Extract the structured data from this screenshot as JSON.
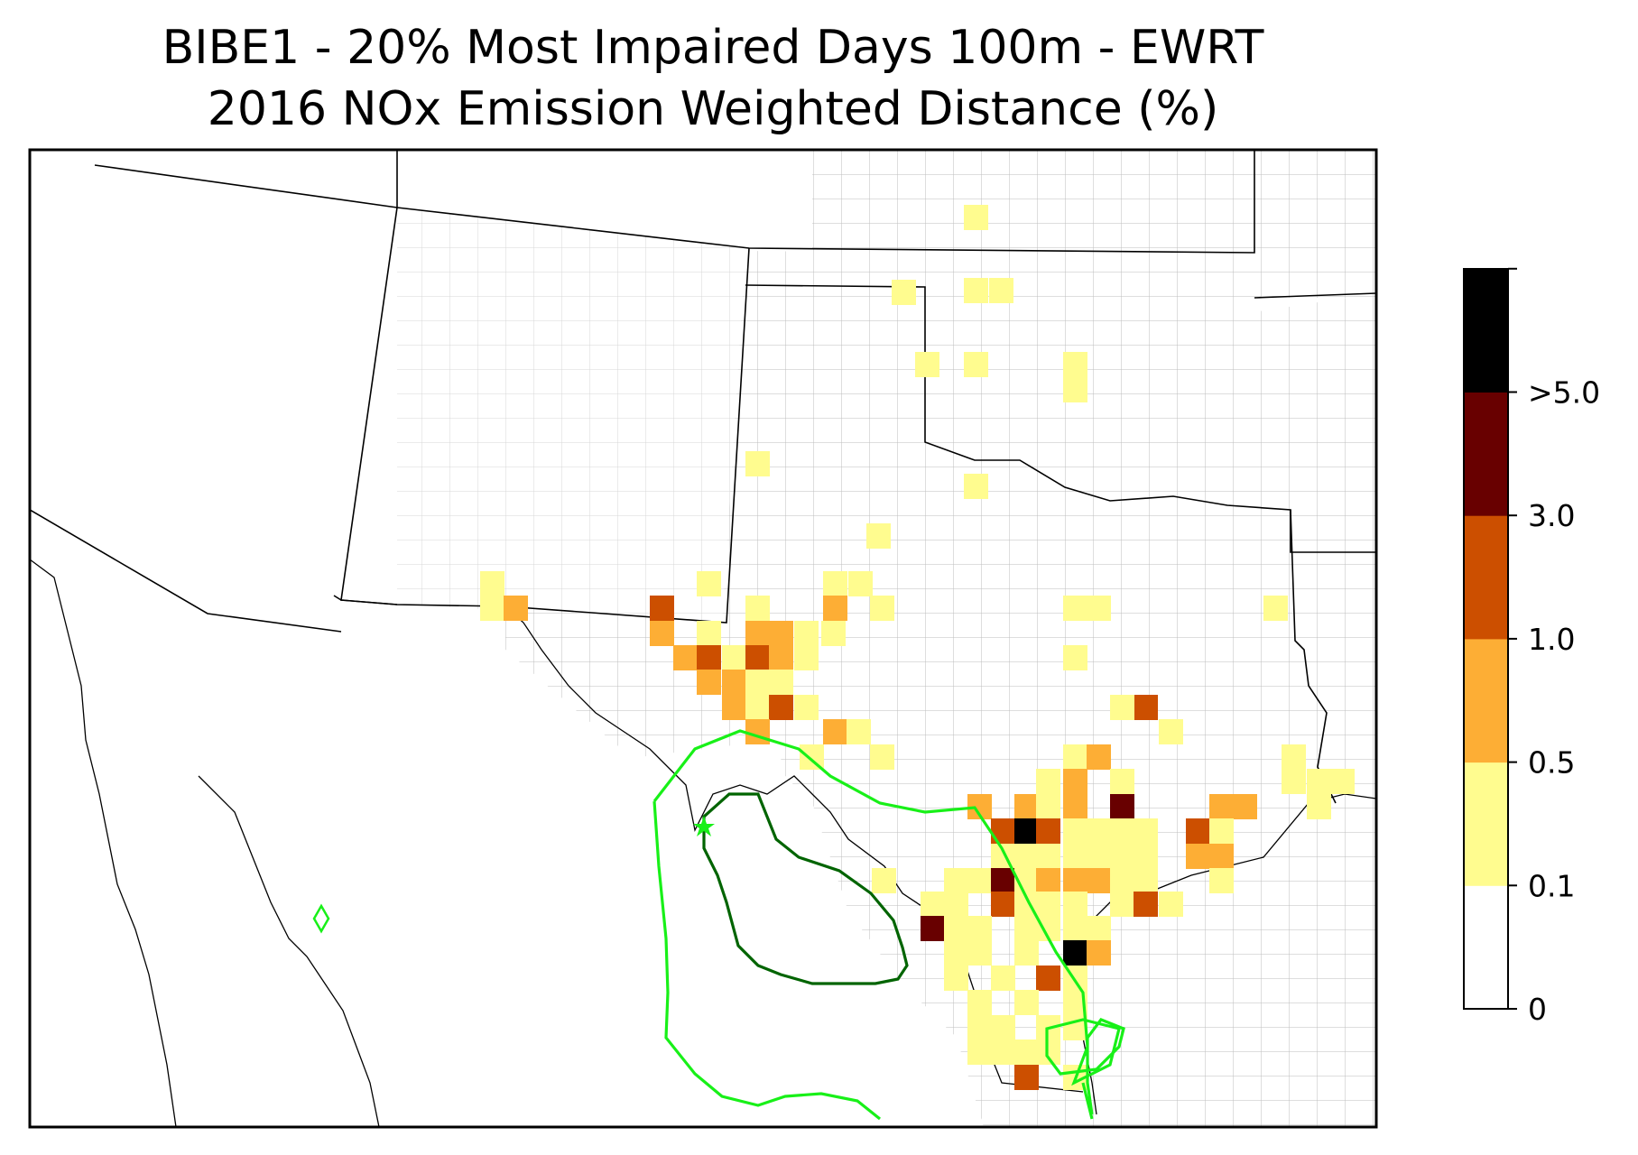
{
  "title": {
    "line1": "BIBE1 - 20% Most Impaired Days 100m - EWRT",
    "line2": "2016 NOx Emission Weighted Distance (%)"
  },
  "colors": {
    "bin_0_0.1": "#ffffff",
    "bin_0.1_0.5": "#fffc8f",
    "bin_0.5_1.0": "#fdae35",
    "bin_1.0_3.0": "#cc4f00",
    "bin_3.0_5.0": "#680000",
    "bin_gt_5.0": "#000000",
    "contour_outer": "#18f018",
    "contour_inner": "#006400",
    "county_lines": "#a0a0a0",
    "state_lines": "#000000"
  },
  "colorbar": {
    "tick_labels": [
      "0",
      "0.1",
      "0.5",
      "1.0",
      "3.0",
      ">5.0"
    ],
    "boundaries": [
      0,
      0.1,
      0.5,
      1.0,
      3.0,
      5.0
    ]
  },
  "map": {
    "site_marker": "star",
    "region": "Texas and surrounding states"
  }
}
